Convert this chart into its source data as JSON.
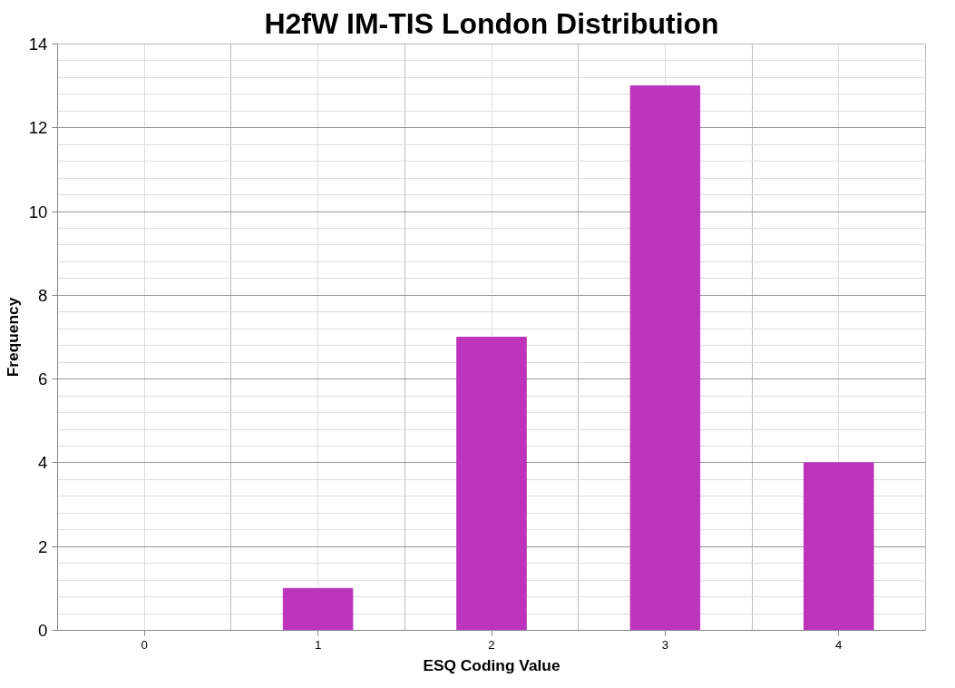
{
  "chart_data": {
    "type": "bar",
    "title": "H2fW IM-TIS London Distribution",
    "xlabel": "ESQ Coding Value",
    "ylabel": "Frequency",
    "categories": [
      "0",
      "1",
      "2",
      "3",
      "4"
    ],
    "values": [
      0,
      1,
      7,
      13,
      4
    ],
    "color": "#bc34bc",
    "ylim": [
      0,
      14
    ],
    "yticks": [
      0,
      2,
      4,
      6,
      8,
      10,
      12,
      14
    ],
    "grid": true
  }
}
